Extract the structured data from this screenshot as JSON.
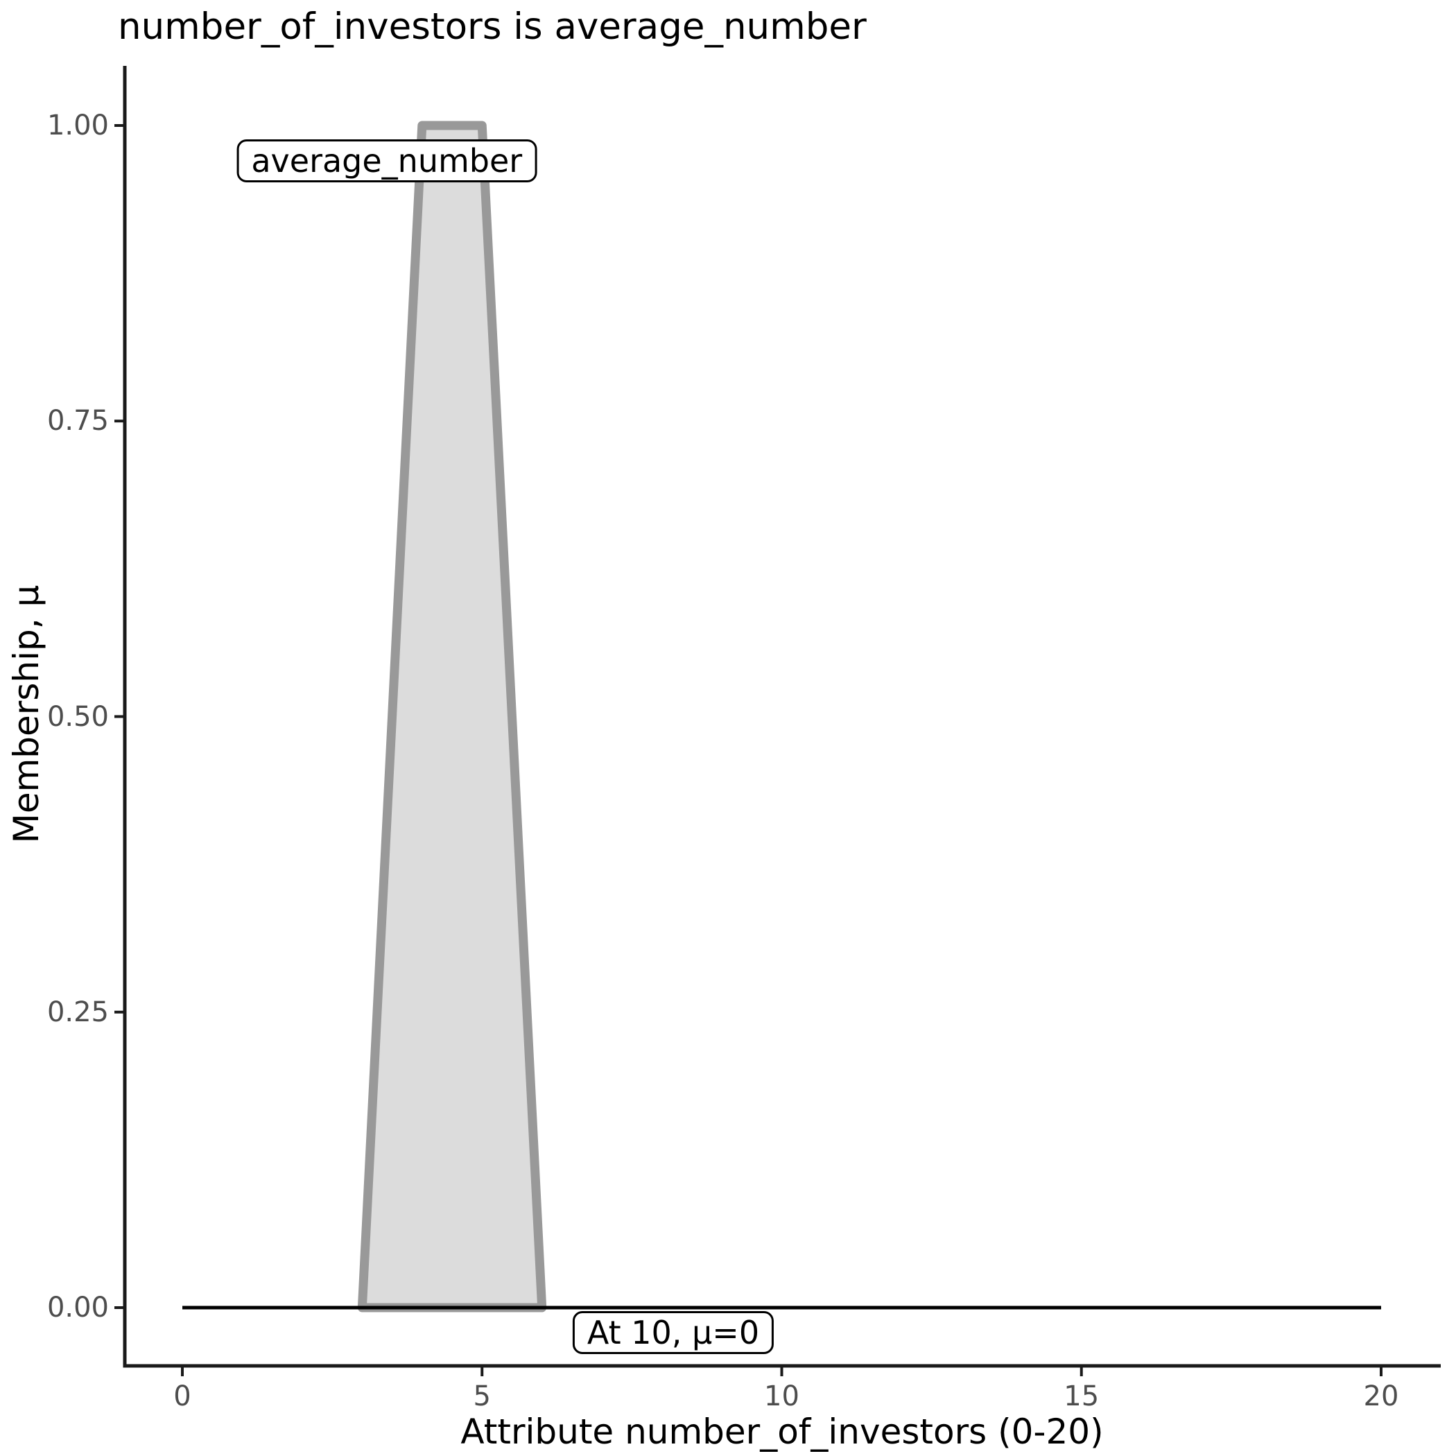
{
  "chart_data": {
    "type": "area",
    "title": "number_of_investors is average_number",
    "xlabel": "Attribute number_of_investors (0-20)",
    "ylabel": "Membership, μ",
    "xlim": [
      0,
      20
    ],
    "ylim": [
      0,
      1
    ],
    "x_ticks": [
      0,
      5,
      10,
      15,
      20
    ],
    "y_ticks": [
      "0.00",
      "0.25",
      "0.50",
      "0.75",
      "1.00"
    ],
    "y_tick_values": [
      0,
      0.25,
      0.5,
      0.75,
      1.0
    ],
    "grid": false,
    "legend": "none",
    "series": [
      {
        "name": "average_number",
        "kind": "membership-polygon",
        "points": [
          [
            3,
            0
          ],
          [
            4,
            1
          ],
          [
            5,
            1
          ],
          [
            6,
            0
          ]
        ],
        "fill": "#dcdcdc",
        "stroke": "#999999"
      },
      {
        "name": "zero-membership-baseline",
        "kind": "line",
        "points": [
          [
            0,
            0
          ],
          [
            20,
            0
          ]
        ],
        "stroke": "#000000"
      }
    ],
    "annotations": [
      {
        "text": "average_number",
        "x": 3.41,
        "mu": 0.97
      },
      {
        "text": "At 10, μ=0",
        "x": 8.19,
        "mu": -0.021
      }
    ]
  },
  "colors": {
    "background": "#ffffff",
    "axis": "#1a1a1a",
    "tick_label": "#4d4d4d",
    "fill_gray": "#dcdcdc",
    "stroke_gray": "#999999"
  }
}
